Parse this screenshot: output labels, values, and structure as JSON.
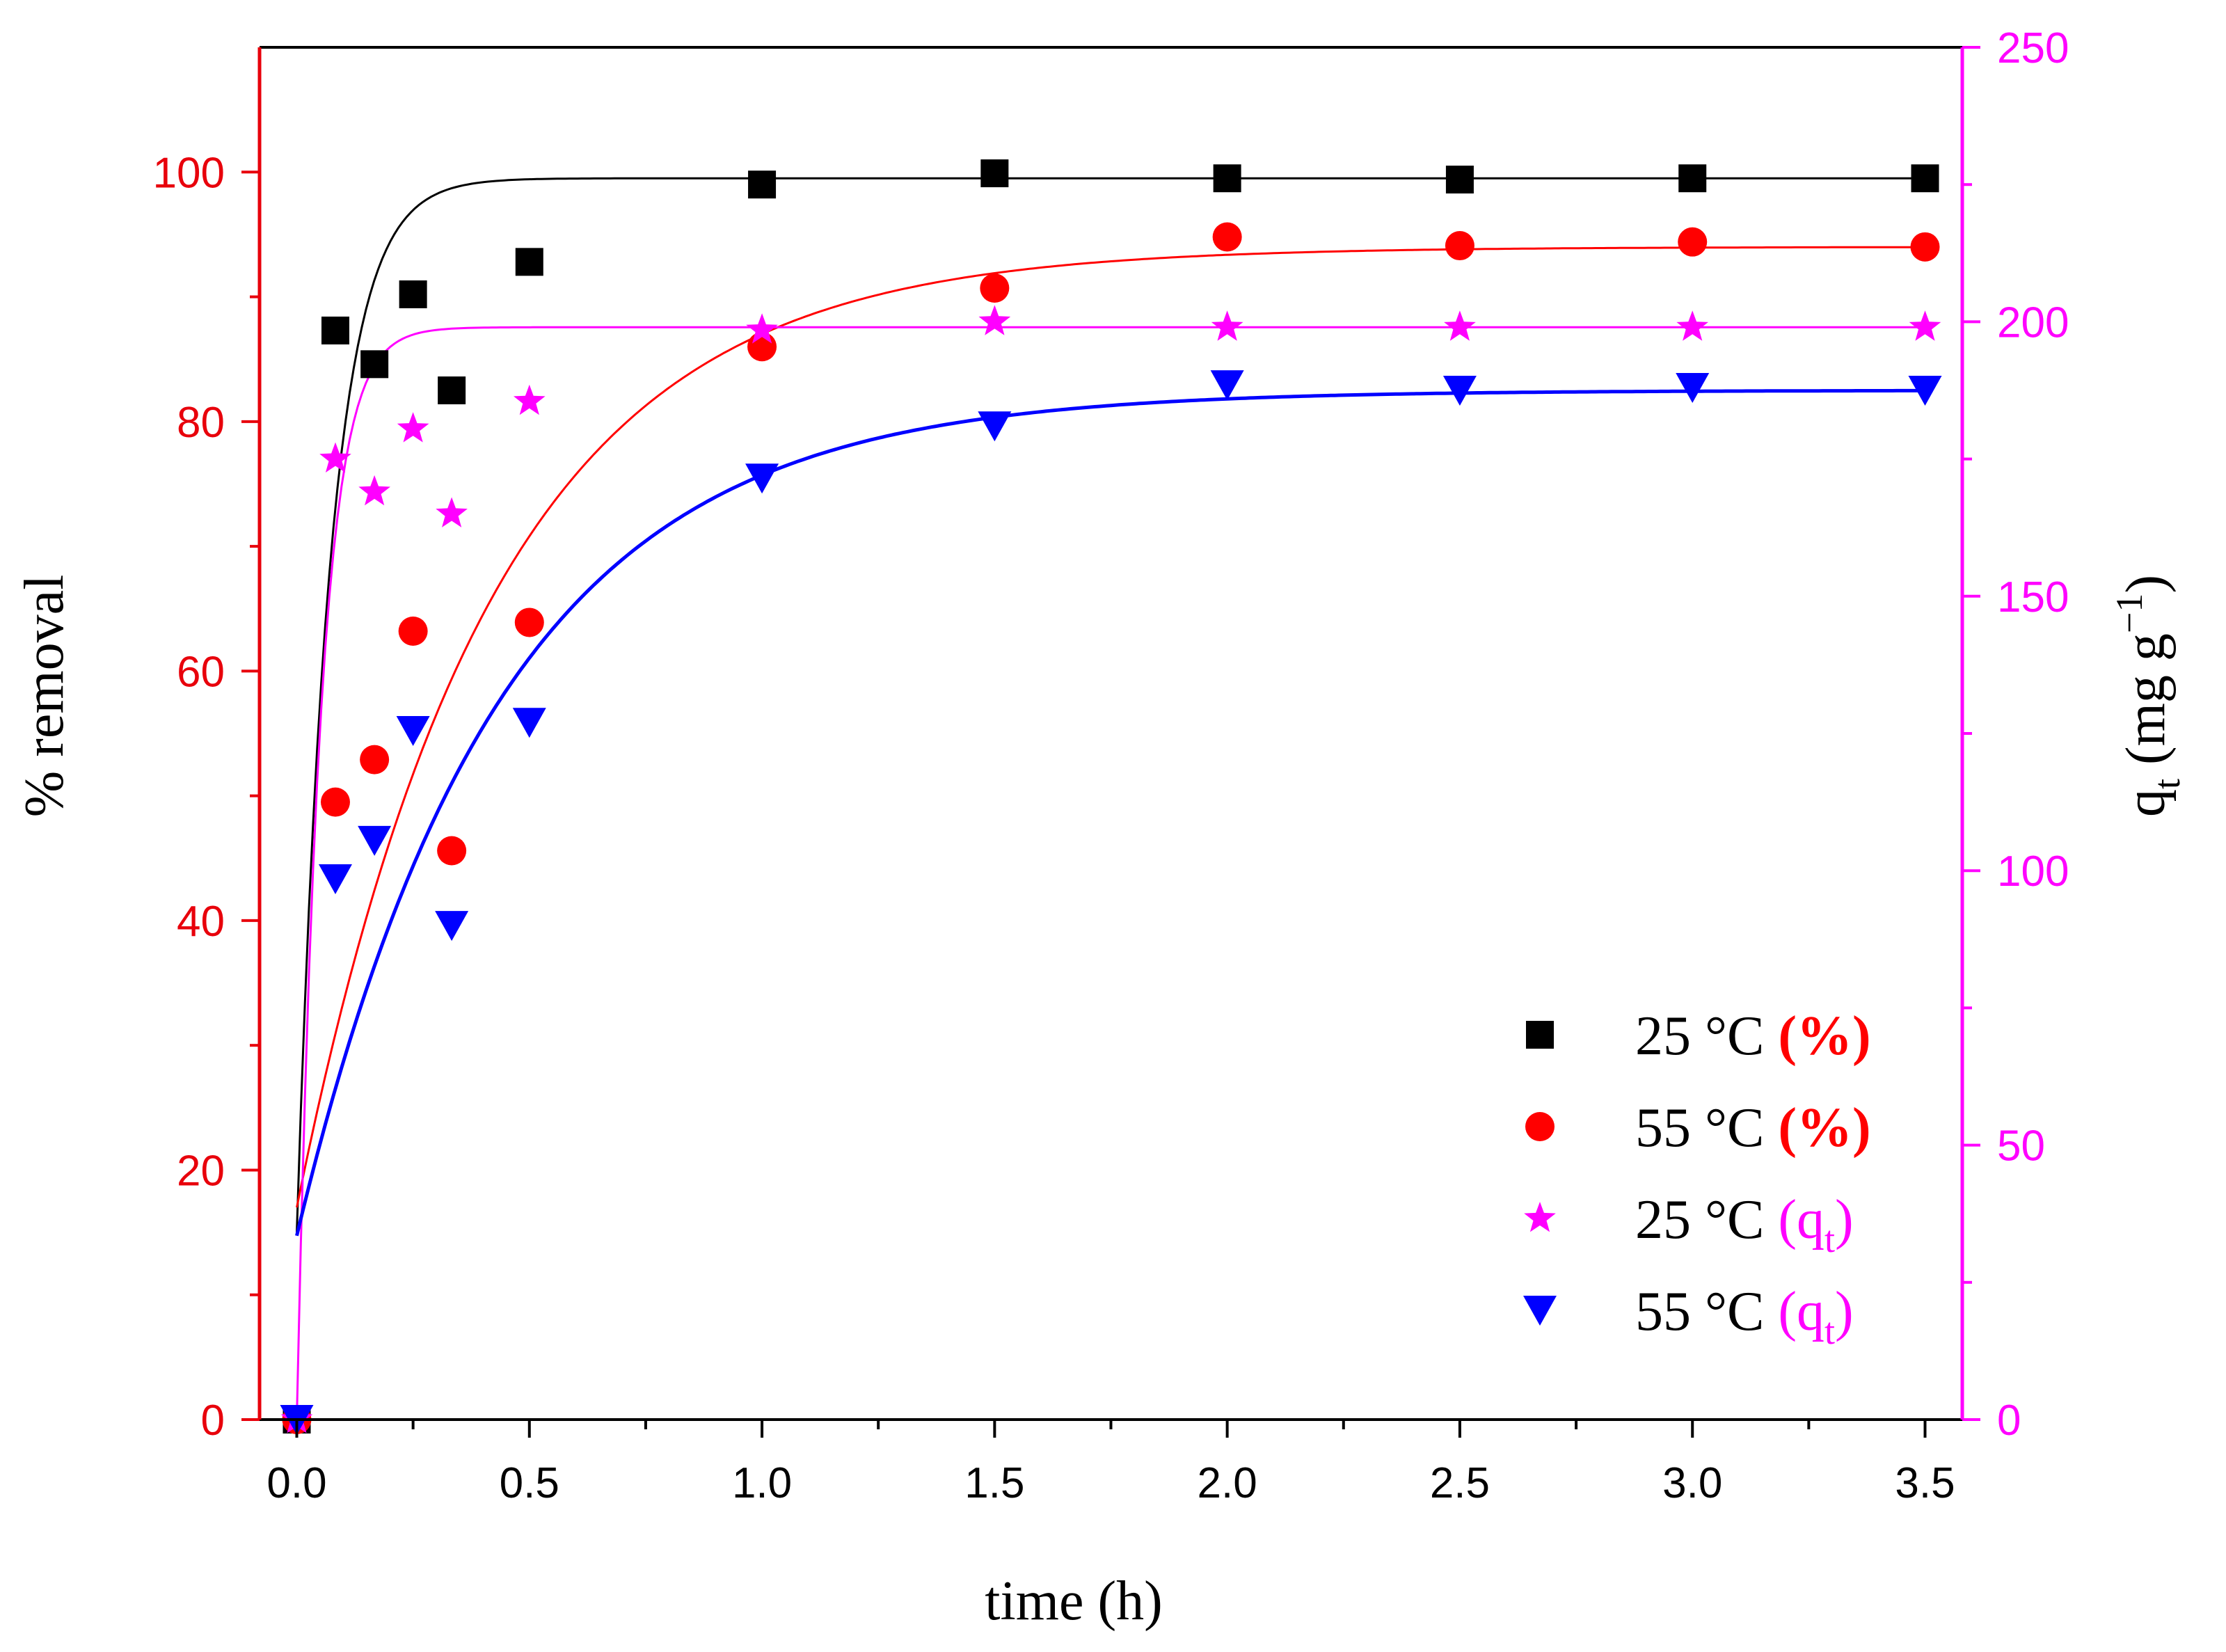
{
  "chart_data": {
    "type": "scatter",
    "title": "",
    "xlabel": "time (h)",
    "ylabel": "% removal",
    "ylabel2": {
      "symbol": "q",
      "sub": "t",
      "units": " (mg g",
      "sup": "−1",
      "close": ")"
    },
    "xlim": [
      -0.08,
      3.58
    ],
    "ylim": [
      0,
      110
    ],
    "y2lim": [
      0,
      250
    ],
    "x_ticks": [
      0.0,
      0.5,
      1.0,
      1.5,
      2.0,
      2.5,
      3.0,
      3.5
    ],
    "x_tick_labels": [
      "0.0",
      "0.5",
      "1.0",
      "1.5",
      "2.0",
      "2.5",
      "3.0",
      "3.5"
    ],
    "y_ticks": [
      0,
      20,
      40,
      60,
      80,
      100
    ],
    "y_tick_labels": [
      "0",
      "20",
      "40",
      "60",
      "80",
      "100"
    ],
    "y2_ticks": [
      0,
      50,
      100,
      150,
      200,
      250
    ],
    "y2_tick_labels": [
      "0",
      "50",
      "100",
      "150",
      "200",
      "250"
    ],
    "colors": {
      "left_axis": "#e8000b",
      "right_axis": "#ff00ff",
      "frame": "#000000"
    },
    "series": [
      {
        "name": "25 °C (%)",
        "axis": "left",
        "marker": "square",
        "color": "#000000",
        "x": [
          0,
          0.083,
          0.167,
          0.25,
          0.333,
          0.5,
          1.0,
          1.5,
          2.0,
          2.5,
          3.0,
          3.5
        ],
        "y": [
          0,
          87.3,
          84.6,
          90.2,
          82.5,
          92.8,
          99.0,
          99.9,
          99.5,
          99.4,
          99.5,
          99.5
        ],
        "fit": {
          "model": "pseudo-first-order",
          "q0": 15,
          "qe": 99.5,
          "k": 14
        }
      },
      {
        "name": "55 °C (%)",
        "axis": "left",
        "marker": "circle",
        "color": "#ff0000",
        "x": [
          0,
          0.083,
          0.167,
          0.25,
          0.333,
          0.5,
          1.0,
          1.5,
          2.0,
          2.5,
          3.0,
          3.5
        ],
        "y": [
          0,
          49.5,
          52.9,
          63.2,
          45.6,
          63.9,
          86.0,
          90.7,
          94.8,
          94.1,
          94.4,
          94.0
        ],
        "fit": {
          "model": "pseudo-first-order",
          "q0": 17,
          "qe": 94.0,
          "k": 2.4
        }
      },
      {
        "name": "25 °C (qt)",
        "axis": "right",
        "marker": "star",
        "color": "#ff00ff",
        "x": [
          0,
          0.083,
          0.167,
          0.25,
          0.333,
          0.5,
          1.0,
          1.5,
          2.0,
          2.5,
          3.0,
          3.5
        ],
        "y": [
          0,
          175,
          169,
          180.5,
          165,
          185.5,
          198.5,
          200,
          199,
          199,
          199,
          199
        ],
        "fit": {
          "model": "pseudo-first-order",
          "q0": 0,
          "qe": 199,
          "k": 20
        }
      },
      {
        "name": "55 °C (qt)",
        "axis": "right",
        "marker": "triangle-down",
        "color": "#0000ff",
        "x": [
          0,
          0.083,
          0.167,
          0.25,
          0.333,
          0.5,
          1.0,
          1.5,
          2.0,
          2.5,
          3.0,
          3.5
        ],
        "y": [
          0,
          98.5,
          105.5,
          125.5,
          90,
          127,
          171.5,
          181,
          188.5,
          187.5,
          188,
          187.5
        ],
        "fit": {
          "model": "pseudo-first-order",
          "q0": 33.5,
          "qe": 187.5,
          "k": 2.3
        }
      }
    ],
    "legend": {
      "position": "bottom-right",
      "items": [
        {
          "marker": "square",
          "color": "#000000",
          "label": "25 °C ",
          "suffix": "(%)",
          "suffix_color": "#ff0000",
          "suffix_bold": true,
          "suffix_sub": ""
        },
        {
          "marker": "circle",
          "color": "#ff0000",
          "label": "55 °C ",
          "suffix": "(%)",
          "suffix_color": "#ff0000",
          "suffix_bold": true,
          "suffix_sub": ""
        },
        {
          "marker": "star",
          "color": "#ff00ff",
          "label": "25 °C ",
          "suffix": "(q",
          "suffix_color": "#ff00ff",
          "suffix_bold": false,
          "suffix_sub": "t"
        },
        {
          "marker": "triangle-down",
          "color": "#0000ff",
          "label": "55 °C ",
          "suffix": "(q",
          "suffix_color": "#ff00ff",
          "suffix_bold": false,
          "suffix_sub": "t"
        }
      ]
    }
  }
}
